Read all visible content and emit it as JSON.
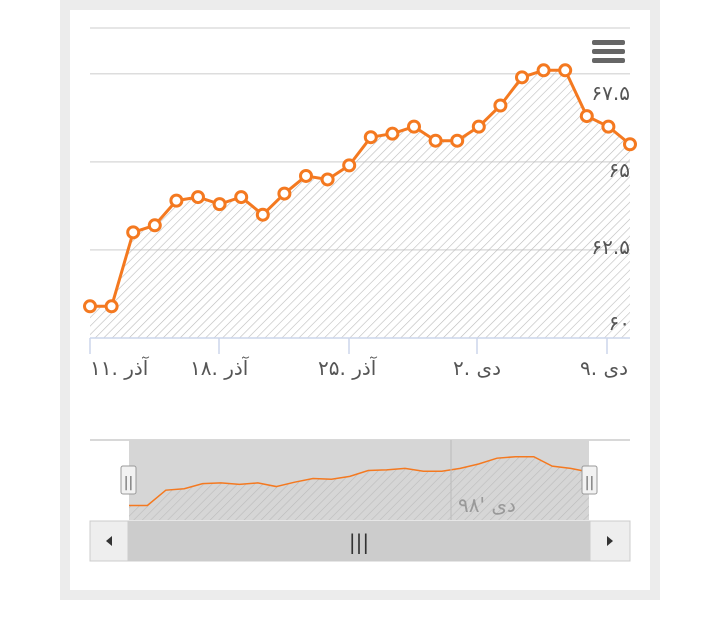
{
  "chart_data": {
    "type": "area",
    "x_tick_labels": [
      "۱۱. آذر",
      "۱۸. آذر",
      "۲۵. آذر",
      "۲. دی",
      "۹. دی"
    ],
    "y_tick_labels": [
      "۶۰",
      "۶۲.۵",
      "۶۵",
      "۶۷.۵"
    ],
    "ylim": [
      60,
      68.8
    ],
    "grid": true,
    "series": [
      {
        "values": [
          60.9,
          60.9,
          63.0,
          63.2,
          63.9,
          64.0,
          63.8,
          64.0,
          63.5,
          64.1,
          64.6,
          64.5,
          64.9,
          65.7,
          65.8,
          66.0,
          65.6,
          65.6,
          66.0,
          66.6,
          67.4,
          67.6,
          67.6,
          66.3,
          66.0,
          65.5
        ]
      }
    ],
    "navigator": {
      "tick_label": "۹۸' دی",
      "handle_label": "||",
      "scrollbar_label": "|||"
    }
  },
  "colors": {
    "line": "#F47920",
    "hatch": "#bbbbbb",
    "grid": "#dddddd",
    "navigator_mask": "#d6d6d6",
    "scrollbar": "#cccccc"
  },
  "icons": {
    "menu": "hamburger-menu-icon",
    "scroll_left": "triangle-left-icon",
    "scroll_right": "triangle-right-icon"
  }
}
